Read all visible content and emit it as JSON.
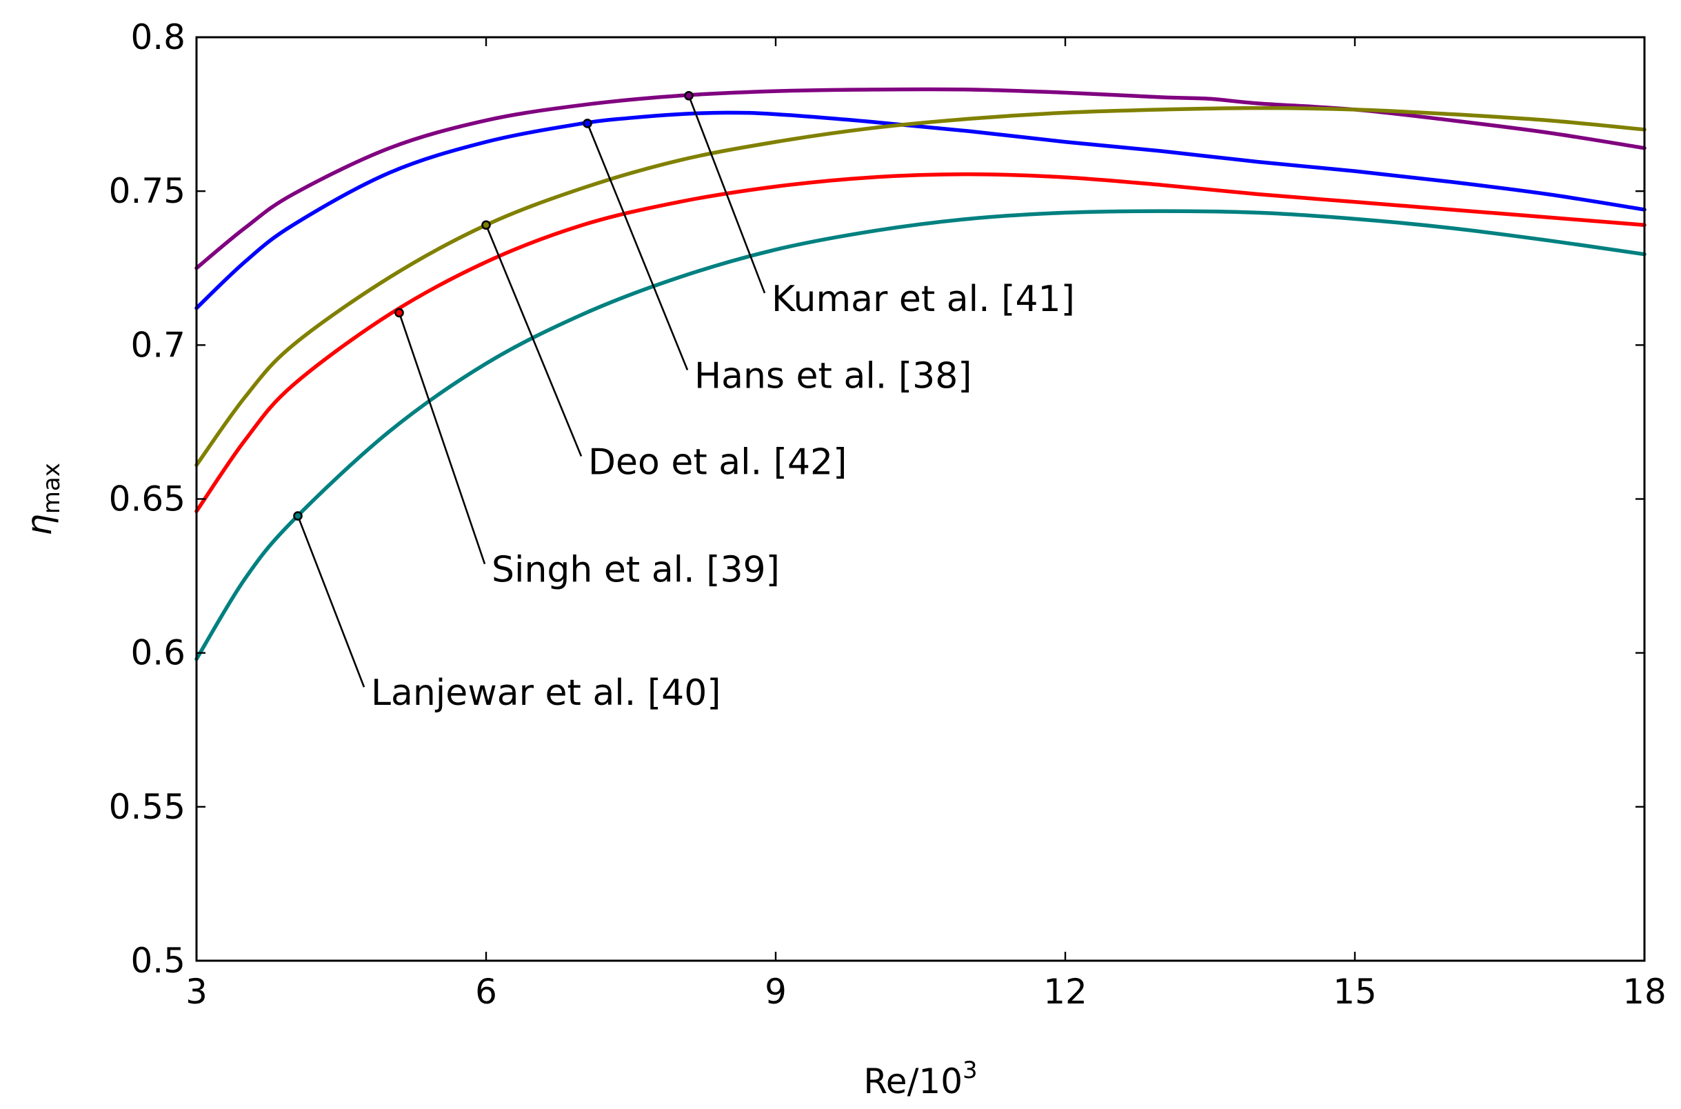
{
  "chart_data": {
    "type": "line",
    "title": "",
    "xlabel": "Re/10",
    "xlabel_superscript": "3",
    "ylabel": "η",
    "ylabel_subscript": "max",
    "xlim": [
      3,
      18
    ],
    "ylim": [
      0.5,
      0.8
    ],
    "xticks": [
      3,
      6,
      9,
      12,
      15,
      18
    ],
    "xtick_labels": [
      "3",
      "6",
      "9",
      "12",
      "15",
      "18"
    ],
    "yticks": [
      0.5,
      0.55,
      0.6,
      0.65,
      0.7,
      0.75,
      0.8
    ],
    "ytick_labels": [
      "0.5",
      "0.55",
      "0.6",
      "0.65",
      "0.7",
      "0.75",
      "0.8"
    ],
    "grid": false,
    "legend": "none (inline annotations)",
    "series": [
      {
        "name": "Kumar et al. [41]",
        "color": "#800080",
        "x": [
          3,
          3.5,
          4,
          5,
          6,
          7,
          8,
          9,
          10,
          11,
          12,
          13,
          13.5,
          14,
          15,
          16,
          17,
          18
        ],
        "y": [
          0.725,
          0.738,
          0.749,
          0.764,
          0.773,
          0.778,
          0.781,
          0.7825,
          0.783,
          0.783,
          0.782,
          0.7805,
          0.78,
          0.7785,
          0.7765,
          0.773,
          0.769,
          0.764
        ],
        "marker": {
          "x": 8.1,
          "y": 0.781
        },
        "label_anchor": {
          "x": 8.9,
          "y": 0.716
        }
      },
      {
        "name": "Hans et al. [38]",
        "color": "#0000ff",
        "x": [
          3,
          3.5,
          4,
          5,
          6,
          7,
          7.5,
          8,
          8.5,
          9,
          10,
          11,
          12,
          13,
          14,
          15,
          16,
          17,
          18
        ],
        "y": [
          0.712,
          0.727,
          0.739,
          0.756,
          0.766,
          0.772,
          0.7738,
          0.775,
          0.7755,
          0.775,
          0.7725,
          0.7695,
          0.766,
          0.763,
          0.7595,
          0.7565,
          0.753,
          0.749,
          0.744
        ],
        "marker": {
          "x": 7.05,
          "y": 0.772
        },
        "label_anchor": {
          "x": 8.1,
          "y": 0.691
        }
      },
      {
        "name": "Deo et al. [42]",
        "color": "#808000",
        "x": [
          3,
          3.5,
          4,
          5,
          6,
          7,
          8,
          9,
          10,
          11,
          12,
          13,
          14,
          15,
          16,
          17,
          18
        ],
        "y": [
          0.661,
          0.683,
          0.7,
          0.722,
          0.739,
          0.751,
          0.76,
          0.766,
          0.7705,
          0.7735,
          0.7755,
          0.7765,
          0.777,
          0.7765,
          0.775,
          0.773,
          0.77
        ],
        "marker": {
          "x": 6.0,
          "y": 0.739
        },
        "label_anchor": {
          "x": 7.0,
          "y": 0.663
        }
      },
      {
        "name": "Singh et al. [39]",
        "color": "#ff0000",
        "x": [
          3,
          3.5,
          4,
          5,
          6,
          7,
          8,
          9,
          10,
          11,
          12,
          13,
          14,
          15,
          16,
          17,
          18
        ],
        "y": [
          0.646,
          0.669,
          0.687,
          0.71,
          0.727,
          0.739,
          0.7465,
          0.7515,
          0.7545,
          0.7555,
          0.7545,
          0.752,
          0.749,
          0.7465,
          0.744,
          0.7415,
          0.739
        ],
        "marker": {
          "x": 5.1,
          "y": 0.7105
        },
        "label_anchor": {
          "x": 6.0,
          "y": 0.628
        }
      },
      {
        "name": "Lanjewar et al. [40]",
        "color": "#008080",
        "x": [
          3,
          3.5,
          4,
          5,
          6,
          7,
          8,
          9,
          10,
          11,
          12,
          13,
          14,
          15,
          16,
          17,
          18
        ],
        "y": [
          0.598,
          0.624,
          0.643,
          0.672,
          0.694,
          0.71,
          0.722,
          0.731,
          0.737,
          0.741,
          0.743,
          0.7435,
          0.743,
          0.741,
          0.738,
          0.734,
          0.7295
        ],
        "marker": {
          "x": 4.05,
          "y": 0.6445
        },
        "label_anchor": {
          "x": 4.75,
          "y": 0.588
        }
      }
    ]
  }
}
